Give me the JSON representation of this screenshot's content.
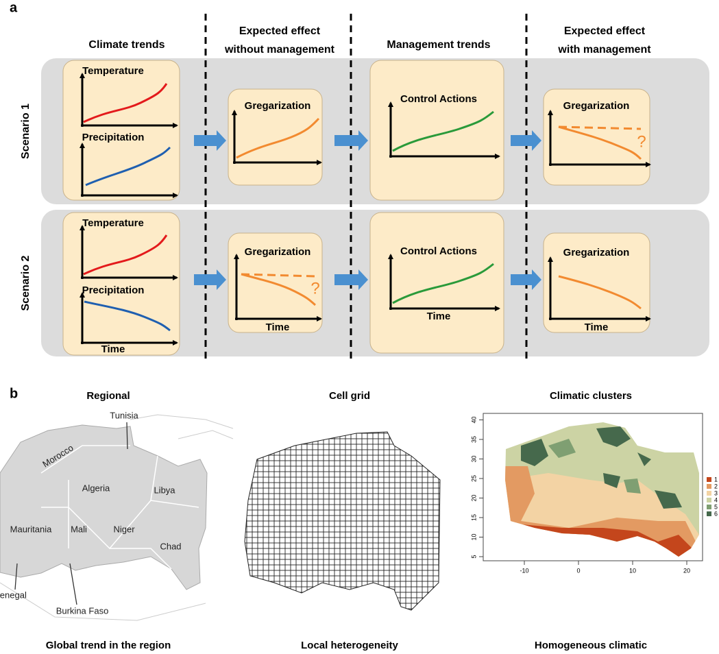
{
  "panel_a": {
    "label": "a",
    "columns": [
      [
        "Climate trends"
      ],
      [
        "Expected effect",
        "without management"
      ],
      [
        "Management trends"
      ],
      [
        "Expected effect",
        "with management"
      ]
    ],
    "scenarios": [
      {
        "label": "Scenario 1",
        "climate_top": "Temperature",
        "climate_bottom": "Precipitation",
        "effect": "Gregarization",
        "management": "Control Actions",
        "with_management": "Gregarization",
        "question_mark": "?"
      },
      {
        "label": "Scenario 2",
        "climate_top": "Temperature",
        "climate_bottom": "Precipitation",
        "climate_time": "Time",
        "effect": "Gregarization",
        "effect_time": "Time",
        "question_mark": "?",
        "management": "Control Actions",
        "management_time": "Time",
        "with_management": "Gregarization",
        "with_management_time": "Time"
      }
    ]
  },
  "panel_b": {
    "label": "b",
    "maps": [
      {
        "title": "Regional",
        "caption": "Global trend in the region",
        "places": [
          "Tunisia",
          "Morocco",
          "Algeria",
          "Libya",
          "Mauritania",
          "Mali",
          "Niger",
          "Chad",
          "Senegal",
          "Burkina Faso"
        ]
      },
      {
        "title": "Cell grid",
        "caption": "Local heterogeneity"
      },
      {
        "title": "Climatic clusters",
        "caption": "Homogeneous climatic",
        "xticks": [
          -10,
          0,
          10,
          20
        ],
        "yticks": [
          5,
          10,
          15,
          20,
          25,
          30,
          35,
          40
        ],
        "legend": [
          {
            "label": "1",
            "color": "#c4461c"
          },
          {
            "label": "2",
            "color": "#e39a62"
          },
          {
            "label": "3",
            "color": "#f3d3a4"
          },
          {
            "label": "4",
            "color": "#ccd3a4"
          },
          {
            "label": "5",
            "color": "#7f9f72"
          },
          {
            "label": "6",
            "color": "#46694c"
          }
        ]
      }
    ]
  }
}
